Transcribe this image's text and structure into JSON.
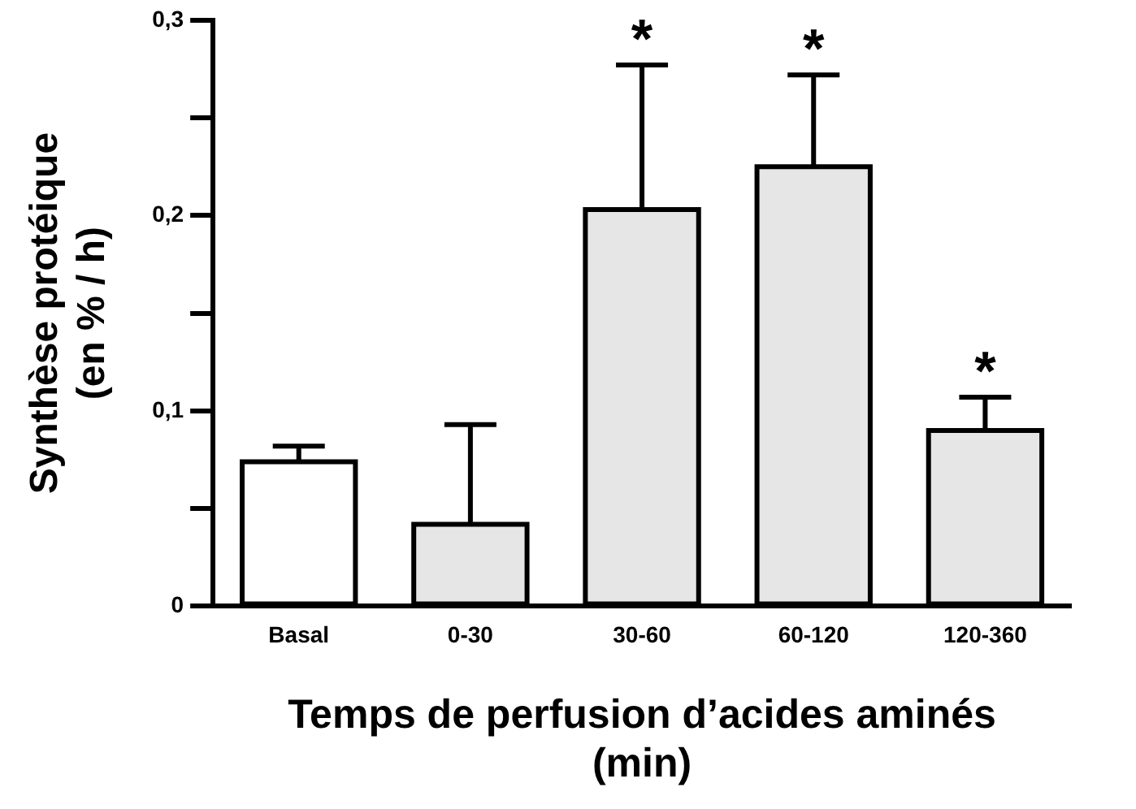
{
  "chart_data": {
    "type": "bar",
    "categories": [
      "Basal",
      "0-30",
      "30-60",
      "60-120",
      "120-360"
    ],
    "values": [
      0.074,
      0.042,
      0.203,
      0.225,
      0.09
    ],
    "colors": [
      "#ffffff",
      "#e6e6e6",
      "#e6e6e6",
      "#e6e6e6",
      "#e6e6e6"
    ],
    "errors": [
      [
        0.074,
        0.082
      ],
      [
        0.042,
        0.093
      ],
      [
        0.203,
        0.277
      ],
      [
        0.225,
        0.272
      ],
      [
        0.09,
        0.107
      ]
    ],
    "ylim": [
      0,
      0.3
    ],
    "yticks": [
      0,
      {
        "value": 0.05,
        "label": null
      },
      {
        "value": 0.1,
        "label": "0,1"
      },
      {
        "value": 0.15,
        "label": null
      },
      {
        "value": 0.2,
        "label": "0,2"
      },
      {
        "value": 0.25,
        "label": null
      },
      {
        "value": 0.3,
        "label": "0,3"
      }
    ],
    "ylabel": "Synthèse protéique\n(en % / h)",
    "xlabel": "Temps de perfusion d’acides aminés\n(min)",
    "annotations": [
      {
        "text": "*",
        "x": "30-60",
        "y": 0.277
      },
      {
        "text": "*",
        "x": "60-120",
        "y": 0.272
      },
      {
        "text": "*",
        "x": "120-360",
        "y": 0.107
      }
    ],
    "grid": false,
    "legend": false
  }
}
